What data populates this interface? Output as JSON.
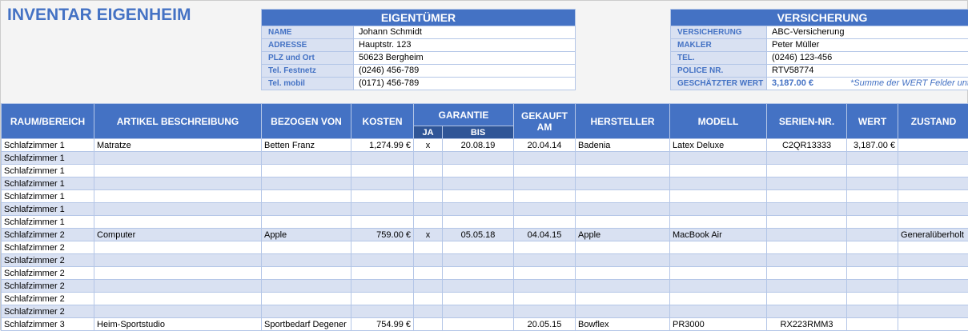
{
  "title": "INVENTAR EIGENHEIM",
  "owner": {
    "heading": "EIGENTÜMER",
    "rows": [
      {
        "label": "NAME",
        "value": "Johann Schmidt"
      },
      {
        "label": "ADRESSE",
        "value": "Hauptstr. 123"
      },
      {
        "label": "PLZ und Ort",
        "value": "50623 Bergheim"
      },
      {
        "label": "Tel. Festnetz",
        "value": "(0246) 456-789"
      },
      {
        "label": "Tel. mobil",
        "value": "(0171) 456-789"
      }
    ]
  },
  "insurance": {
    "heading": "VERSICHERUNG",
    "rows": [
      {
        "label": "VERSICHERUNG",
        "value": "ABC-Versicherung"
      },
      {
        "label": "MAKLER",
        "value": "Peter Müller"
      },
      {
        "label": "TEL.",
        "value": "(0246) 123-456"
      },
      {
        "label": "POLICE NR.",
        "value": "RTV58774"
      },
      {
        "label": "GESCHÄTZTER WERT",
        "value": "3,187.00 €"
      }
    ],
    "note": "*Summe der WERT Felder unten"
  },
  "columns": {
    "room": "RAUM/BEREICH",
    "desc": "ARTIKEL BESCHREIBUNG",
    "from": "BEZOGEN VON",
    "cost": "KOSTEN",
    "warranty": "GARANTIE",
    "ja": "JA",
    "bis": "BIS",
    "bought": "GEKAUFT AM",
    "maker": "HERSTELLER",
    "model": "MODELL",
    "serial": "SERIEN-NR.",
    "value": "WERT",
    "state": "ZUSTAND"
  },
  "rows": [
    [
      "Schlafzimmer 1",
      "Matratze",
      "Betten Franz",
      "1,274.99 €",
      "x",
      "20.08.19",
      "20.04.14",
      "Badenia",
      "Latex Deluxe",
      "C2QR13333",
      "3,187.00 €",
      ""
    ],
    [
      "Schlafzimmer 1",
      "",
      "",
      "",
      "",
      "",
      "",
      "",
      "",
      "",
      "",
      ""
    ],
    [
      "Schlafzimmer 1",
      "",
      "",
      "",
      "",
      "",
      "",
      "",
      "",
      "",
      "",
      ""
    ],
    [
      "Schlafzimmer 1",
      "",
      "",
      "",
      "",
      "",
      "",
      "",
      "",
      "",
      "",
      ""
    ],
    [
      "Schlafzimmer 1",
      "",
      "",
      "",
      "",
      "",
      "",
      "",
      "",
      "",
      "",
      ""
    ],
    [
      "Schlafzimmer 1",
      "",
      "",
      "",
      "",
      "",
      "",
      "",
      "",
      "",
      "",
      ""
    ],
    [
      "Schlafzimmer 1",
      "",
      "",
      "",
      "",
      "",
      "",
      "",
      "",
      "",
      "",
      ""
    ],
    [
      "Schlafzimmer 2",
      "Computer",
      "Apple",
      "759.00 €",
      "x",
      "05.05.18",
      "04.04.15",
      "Apple",
      "MacBook Air",
      "",
      "",
      "Generalüberholt"
    ],
    [
      "Schlafzimmer 2",
      "",
      "",
      "",
      "",
      "",
      "",
      "",
      "",
      "",
      "",
      ""
    ],
    [
      "Schlafzimmer 2",
      "",
      "",
      "",
      "",
      "",
      "",
      "",
      "",
      "",
      "",
      ""
    ],
    [
      "Schlafzimmer 2",
      "",
      "",
      "",
      "",
      "",
      "",
      "",
      "",
      "",
      "",
      ""
    ],
    [
      "Schlafzimmer 2",
      "",
      "",
      "",
      "",
      "",
      "",
      "",
      "",
      "",
      "",
      ""
    ],
    [
      "Schlafzimmer 2",
      "",
      "",
      "",
      "",
      "",
      "",
      "",
      "",
      "",
      "",
      ""
    ],
    [
      "Schlafzimmer 2",
      "",
      "",
      "",
      "",
      "",
      "",
      "",
      "",
      "",
      "",
      ""
    ],
    [
      "Schlafzimmer 3",
      "Heim-Sportstudio",
      "Sportbedarf Degener",
      "754.99 €",
      "",
      "",
      "20.05.15",
      "Bowflex",
      "PR3000",
      "RX223RMM3",
      "",
      ""
    ]
  ]
}
